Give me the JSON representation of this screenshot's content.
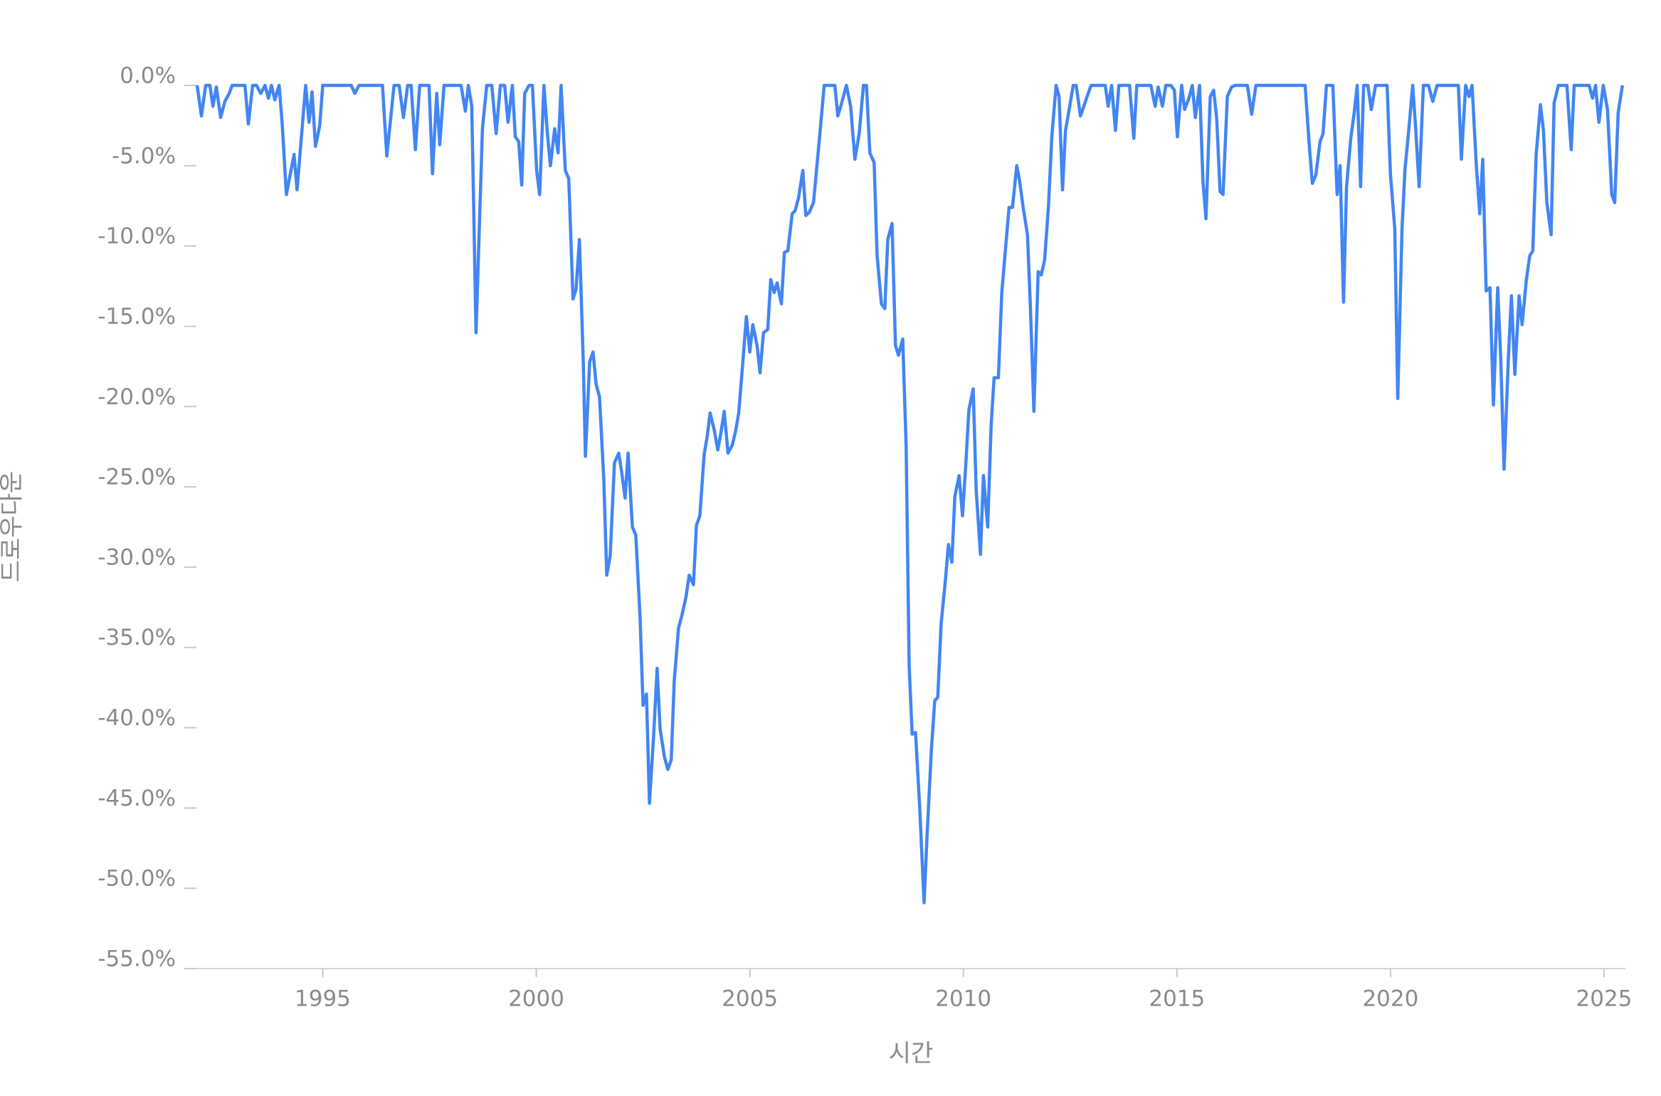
{
  "chart_data": {
    "type": "line",
    "x_label": "시간",
    "y_label": "드로우다운",
    "color": "#4285f4",
    "xlim": [
      1991.76,
      2025.5
    ],
    "ylim": [
      -55,
      0
    ],
    "xticks": [
      1995,
      2000,
      2005,
      2010,
      2015,
      2020,
      2025
    ],
    "yticks": [
      {
        "value": 0,
        "label": "0.0%"
      },
      {
        "value": -5,
        "label": "-5.0%"
      },
      {
        "value": -10,
        "label": "-10.0%"
      },
      {
        "value": -15,
        "label": "-15.0%"
      },
      {
        "value": -20,
        "label": "-20.0%"
      },
      {
        "value": -25,
        "label": "-25.0%"
      },
      {
        "value": -30,
        "label": "-30.0%"
      },
      {
        "value": -35,
        "label": "-35.0%"
      },
      {
        "value": -40,
        "label": "-40.0%"
      },
      {
        "value": -45,
        "label": "-45.0%"
      },
      {
        "value": -50,
        "label": "-50.0%"
      },
      {
        "value": -55,
        "label": "-55.0%"
      }
    ],
    "x": [
      1992.06,
      1992.16,
      1992.26,
      1992.36,
      1992.43,
      1992.51,
      1992.61,
      1992.71,
      1992.81,
      1992.88,
      1993.18,
      1993.26,
      1993.36,
      1993.45,
      1993.55,
      1993.65,
      1993.73,
      1993.8,
      1993.88,
      1993.98,
      1994.05,
      1994.15,
      1994.33,
      1994.4,
      1994.6,
      1994.68,
      1994.75,
      1994.83,
      1994.93,
      1995,
      1995.67,
      1995.75,
      1995.85,
      1996.4,
      1996.5,
      1996.67,
      1996.79,
      1996.89,
      1996.99,
      1997.07,
      1997.17,
      1997.27,
      1997.49,
      1997.57,
      1997.67,
      1997.74,
      1997.84,
      1998.24,
      1998.34,
      1998.41,
      1998.49,
      1998.59,
      1998.74,
      1998.84,
      1998.96,
      1999.06,
      1999.16,
      1999.26,
      1999.34,
      1999.44,
      1999.51,
      1999.59,
      1999.66,
      1999.73,
      1999.83,
      1999.91,
      2000.01,
      2000.08,
      2000.18,
      2000.26,
      2000.33,
      2000.43,
      2000.51,
      2000.58,
      2000.68,
      2000.76,
      2000.86,
      2000.93,
      2001.01,
      2001.1,
      2001.15,
      2001.25,
      2001.33,
      2001.4,
      2001.48,
      2001.58,
      2001.65,
      2001.73,
      2001.83,
      2001.93,
      2002.0,
      2002.08,
      2002.15,
      2002.25,
      2002.33,
      2002.43,
      2002.5,
      2002.58,
      2002.65,
      2002.75,
      2002.83,
      2002.9,
      2003.0,
      2003.08,
      2003.16,
      2003.23,
      2003.33,
      2003.41,
      2003.51,
      2003.58,
      2003.68,
      2003.75,
      2003.83,
      2003.93,
      2004.0,
      2004.07,
      2004.17,
      2004.25,
      2004.32,
      2004.4,
      2004.49,
      2004.59,
      2004.67,
      2004.74,
      2004.82,
      2004.92,
      2005.0,
      2005.07,
      2005.17,
      2005.24,
      2005.32,
      2005.42,
      2005.49,
      2005.57,
      2005.64,
      2005.74,
      2005.81,
      2005.89,
      2005.99,
      2006.06,
      2006.14,
      2006.24,
      2006.31,
      2006.39,
      2006.49,
      2006.56,
      2006.64,
      2006.74,
      2006.99,
      2007.06,
      2007.16,
      2007.26,
      2007.36,
      2007.46,
      2007.56,
      2007.66,
      2007.73,
      2007.81,
      2007.91,
      2007.98,
      2008.08,
      2008.16,
      2008.23,
      2008.33,
      2008.41,
      2008.48,
      2008.58,
      2008.66,
      2008.73,
      2008.8,
      2008.88,
      2008.98,
      2009.08,
      2009.15,
      2009.25,
      2009.33,
      2009.4,
      2009.48,
      2009.58,
      2009.65,
      2009.73,
      2009.8,
      2009.9,
      2009.98,
      2010.05,
      2010.13,
      2010.23,
      2010.3,
      2010.4,
      2010.47,
      2010.57,
      2010.65,
      2010.72,
      2010.82,
      2010.9,
      2010.97,
      2011.07,
      2011.15,
      2011.25,
      2011.32,
      2011.4,
      2011.5,
      2011.57,
      2011.65,
      2011.75,
      2011.82,
      2011.9,
      2011.99,
      2012.07,
      2012.17,
      2012.24,
      2012.32,
      2012.39,
      2012.49,
      2012.57,
      2012.64,
      2012.74,
      2012.82,
      2012.92,
      2012.99,
      2013.32,
      2013.39,
      2013.47,
      2013.56,
      2013.64,
      2013.89,
      2013.99,
      2014.06,
      2014.39,
      2014.49,
      2014.56,
      2014.66,
      2014.74,
      2014.86,
      2014.94,
      2015.01,
      2015.11,
      2015.18,
      2015.28,
      2015.36,
      2015.43,
      2015.53,
      2015.61,
      2015.68,
      2015.78,
      2015.86,
      2015.93,
      2016.01,
      2016.08,
      2016.18,
      2016.28,
      2016.36,
      2016.65,
      2016.75,
      2016.85,
      2018.0,
      2018.1,
      2018.17,
      2018.25,
      2018.35,
      2018.42,
      2018.5,
      2018.65,
      2018.75,
      2018.82,
      2018.9,
      2018.97,
      2019.07,
      2019.15,
      2019.22,
      2019.3,
      2019.37,
      2019.47,
      2019.55,
      2019.65,
      2019.92,
      2020.0,
      2020.1,
      2020.17,
      2020.27,
      2020.34,
      2020.42,
      2020.52,
      2020.59,
      2020.67,
      2020.77,
      2020.89,
      2020.99,
      2021.09,
      2021.59,
      2021.66,
      2021.76,
      2021.84,
      2021.91,
      2022.01,
      2022.09,
      2022.16,
      2022.24,
      2022.33,
      2022.41,
      2022.51,
      2022.58,
      2022.66,
      2022.76,
      2022.83,
      2022.91,
      2023.01,
      2023.08,
      2023.18,
      2023.26,
      2023.33,
      2023.41,
      2023.51,
      2023.58,
      2023.66,
      2023.76,
      2023.83,
      2023.93,
      2024.13,
      2024.23,
      2024.3,
      2024.65,
      2024.73,
      2024.8,
      2024.88,
      2024.98,
      2025.08,
      2025.18,
      2025.25,
      2025.33,
      2025.43
    ],
    "values": [
      0,
      -1.9,
      0,
      0,
      -1.3,
      -0.1,
      -2.0,
      -1.0,
      -0.5,
      0,
      0,
      -2.4,
      0,
      0,
      -0.5,
      0,
      -0.8,
      0,
      -0.9,
      0,
      -2.3,
      -6.8,
      -4.3,
      -6.5,
      0,
      -2.3,
      -0.4,
      -3.8,
      -2.5,
      0,
      0,
      -0.5,
      0,
      0,
      -4.4,
      0,
      0,
      -2.0,
      0,
      0,
      -4.0,
      0,
      0,
      -5.5,
      -0.5,
      -3.7,
      0,
      0,
      -1.6,
      0,
      -1.3,
      -15.4,
      -2.7,
      0,
      0,
      -3.0,
      0,
      0,
      -2.3,
      0,
      -3.2,
      -3.5,
      -6.2,
      -0.5,
      0,
      0,
      -5.3,
      -6.8,
      0,
      -3.0,
      -5.0,
      -2.7,
      -4.2,
      0,
      -5.3,
      -5.8,
      -13.3,
      -12.7,
      -9.6,
      -17.2,
      -23.1,
      -17.2,
      -16.6,
      -18.6,
      -19.4,
      -24.5,
      -30.5,
      -29.3,
      -23.5,
      -22.9,
      -24.1,
      -25.7,
      -22.9,
      -27.5,
      -28.0,
      -33.1,
      -38.6,
      -37.9,
      -44.7,
      -40.4,
      -36.3,
      -40.1,
      -41.8,
      -42.6,
      -42.0,
      -37.1,
      -33.8,
      -33.0,
      -31.8,
      -30.5,
      -31.1,
      -27.4,
      -26.8,
      -23.0,
      -21.9,
      -20.4,
      -21.5,
      -22.7,
      -21.7,
      -20.3,
      -22.9,
      -22.4,
      -21.5,
      -20.4,
      -17.8,
      -14.4,
      -16.6,
      -14.9,
      -16.2,
      -17.9,
      -15.4,
      -15.2,
      -12.1,
      -12.9,
      -12.3,
      -13.6,
      -10.4,
      -10.3,
      -8.0,
      -7.8,
      -7.0,
      -5.3,
      -8.1,
      -7.9,
      -7.3,
      -5.3,
      -3.0,
      0,
      0,
      -1.9,
      -1.0,
      0,
      -1.3,
      -4.6,
      -3.0,
      0,
      0,
      -4.2,
      -4.8,
      -10.6,
      -13.6,
      -13.9,
      -9.6,
      -8.6,
      -16.2,
      -16.8,
      -15.8,
      -22.5,
      -36.1,
      -40.4,
      -40.3,
      -45.1,
      -50.9,
      -46.7,
      -41.4,
      -38.3,
      -38.1,
      -33.5,
      -30.8,
      -28.6,
      -29.7,
      -25.6,
      -24.3,
      -26.8,
      -23.9,
      -20.2,
      -18.9,
      -25.2,
      -29.2,
      -24.3,
      -27.5,
      -21.2,
      -18.2,
      -18.2,
      -12.9,
      -10.7,
      -7.6,
      -7.6,
      -5.0,
      -6.0,
      -7.6,
      -9.3,
      -13.9,
      -20.3,
      -11.6,
      -11.8,
      -10.9,
      -7.6,
      -3.2,
      0,
      -0.7,
      -6.5,
      -2.8,
      -1.3,
      0,
      0,
      -1.9,
      -1.3,
      -0.5,
      0,
      0,
      -1.3,
      0,
      -2.8,
      0,
      0,
      -3.3,
      0,
      0,
      -1.3,
      -0.1,
      -1.3,
      0,
      0,
      -0.3,
      -3.2,
      0,
      -1.5,
      -0.8,
      0,
      -2.0,
      0,
      -6.0,
      -8.3,
      -0.7,
      -0.3,
      -2.0,
      -6.6,
      -6.8,
      -0.7,
      -0.1,
      0,
      0,
      -1.8,
      0,
      0,
      -3.8,
      -6.1,
      -5.6,
      -3.5,
      -3.0,
      0,
      0,
      -6.8,
      -5.0,
      -13.5,
      -6.3,
      -3.3,
      -1.7,
      0,
      -6.3,
      0,
      0,
      -1.5,
      0,
      0,
      -5.6,
      -8.9,
      -19.5,
      -8.9,
      -5.2,
      -3.0,
      0,
      -2.7,
      -6.3,
      0,
      0,
      -1.0,
      0,
      0,
      -4.6,
      0,
      -0.7,
      0,
      -5.0,
      -8.0,
      -4.6,
      -12.8,
      -12.6,
      -19.9,
      -12.6,
      -16.9,
      -23.9,
      -16.9,
      -13.1,
      -18.0,
      -13.1,
      -14.9,
      -12.1,
      -10.6,
      -10.3,
      -4.3,
      -1.2,
      -2.8,
      -7.3,
      -9.3,
      -1.1,
      0,
      0,
      -4.0,
      0,
      0,
      -0.8,
      0,
      -2.3,
      0,
      -1.5,
      -6.8,
      -7.3,
      -1.7,
      0
    ]
  }
}
